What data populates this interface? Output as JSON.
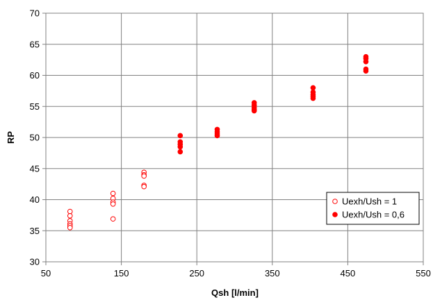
{
  "chart_data": {
    "type": "scatter",
    "title": "",
    "xlabel": "Qsh [l/min]",
    "ylabel": "RP",
    "xlim": [
      50,
      550
    ],
    "ylim": [
      30,
      70
    ],
    "xticks": [
      50,
      150,
      250,
      350,
      450,
      550
    ],
    "yticks": [
      30,
      35,
      40,
      45,
      50,
      55,
      60,
      65,
      70
    ],
    "grid": true,
    "legend_position": "lower-right",
    "series": [
      {
        "name": "Uexh/Ush = 1",
        "marker": "open-circle",
        "color": "#ff0000",
        "points": [
          [
            82,
            38.1
          ],
          [
            82,
            37.4
          ],
          [
            82,
            36.6
          ],
          [
            82,
            36.1
          ],
          [
            82,
            35.8
          ],
          [
            82,
            35.5
          ],
          [
            139,
            41.0
          ],
          [
            139,
            40.2
          ],
          [
            139,
            39.6
          ],
          [
            139,
            39.3
          ],
          [
            139,
            36.9
          ],
          [
            180,
            44.4
          ],
          [
            180,
            44.0
          ],
          [
            180,
            43.8
          ],
          [
            180,
            42.3
          ],
          [
            180,
            42.1
          ]
        ]
      },
      {
        "name": "Uexh/Ush = 0,6",
        "marker": "filled-circle",
        "color": "#ff0000",
        "points": [
          [
            228,
            50.3
          ],
          [
            228,
            49.3
          ],
          [
            228,
            48.9
          ],
          [
            228,
            48.5
          ],
          [
            228,
            47.7
          ],
          [
            277,
            51.3
          ],
          [
            277,
            50.9
          ],
          [
            277,
            50.6
          ],
          [
            277,
            50.3
          ],
          [
            326,
            55.6
          ],
          [
            326,
            55.2
          ],
          [
            326,
            54.8
          ],
          [
            326,
            54.5
          ],
          [
            326,
            54.3
          ],
          [
            404,
            58.0
          ],
          [
            404,
            57.3
          ],
          [
            404,
            56.9
          ],
          [
            404,
            56.6
          ],
          [
            404,
            56.3
          ],
          [
            474,
            63.0
          ],
          [
            474,
            62.7
          ],
          [
            474,
            62.2
          ],
          [
            474,
            61.0
          ],
          [
            474,
            60.7
          ]
        ]
      }
    ]
  }
}
